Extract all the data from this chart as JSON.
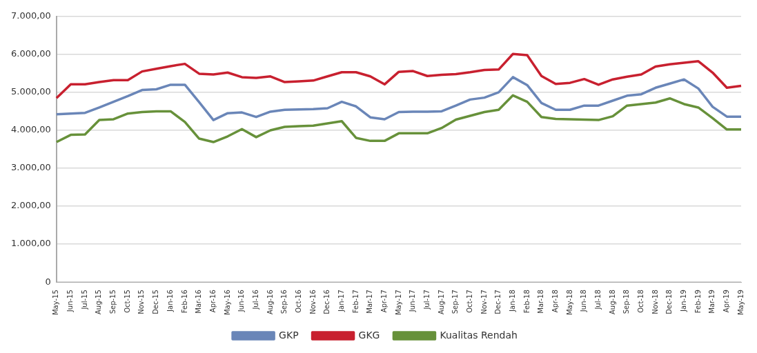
{
  "chart_data": {
    "type": "line",
    "categories": [
      "May-15",
      "Jun-15",
      "Jul-15",
      "Aug-15",
      "Sep-15",
      "Oct-15",
      "Nov-15",
      "Dec-15",
      "Jan-16",
      "Feb-16",
      "Mar-16",
      "Apr-16",
      "May-16",
      "Jun-16",
      "Jul-16",
      "Aug-16",
      "Sep-16",
      "Oct-16",
      "Nov-16",
      "Dec-16",
      "Jan-17",
      "Feb-17",
      "Mar-17",
      "Apr-17",
      "May-17",
      "Jun-17",
      "Jul-17",
      "Aug-17",
      "Sep-17",
      "Oct-17",
      "Nov-17",
      "Dec-17",
      "Jan-18",
      "Feb-18",
      "Mar-18",
      "Apr-18",
      "May-18",
      "Jun-18",
      "Jul-18",
      "Aug-18",
      "Sep-18",
      "Oct-18",
      "Nov-18",
      "Dec-18",
      "Jan-19",
      "Feb-19",
      "Mar-19",
      "Apr-19",
      "May-19"
    ],
    "series": [
      {
        "name": "GKP",
        "color": "#6a86b8",
        "values": [
          4420,
          4440,
          4460,
          4600,
          4750,
          4900,
          5060,
          5080,
          5200,
          5200,
          4740,
          4270,
          4450,
          4470,
          4350,
          4490,
          4540,
          4550,
          4560,
          4580,
          4750,
          4630,
          4340,
          4290,
          4480,
          4490,
          4490,
          4500,
          4650,
          4810,
          4860,
          5000,
          5400,
          5190,
          4720,
          4540,
          4540,
          4650,
          4650,
          4780,
          4910,
          4950,
          5120,
          5230,
          5340,
          5100,
          4620,
          4360,
          4360
        ]
      },
      {
        "name": "GKG",
        "color": "#c8202f",
        "values": [
          4850,
          5210,
          5210,
          5270,
          5320,
          5320,
          5550,
          5620,
          5690,
          5750,
          5490,
          5470,
          5520,
          5400,
          5380,
          5420,
          5270,
          5290,
          5310,
          5420,
          5530,
          5530,
          5420,
          5210,
          5540,
          5560,
          5430,
          5460,
          5480,
          5530,
          5590,
          5600,
          6010,
          5980,
          5430,
          5220,
          5250,
          5350,
          5200,
          5340,
          5410,
          5470,
          5680,
          5740,
          5780,
          5820,
          5520,
          5120,
          5170
        ]
      },
      {
        "name": "Kualitas Rendah",
        "color": "#67913a",
        "values": [
          3690,
          3880,
          3890,
          4270,
          4290,
          4440,
          4480,
          4500,
          4500,
          4220,
          3780,
          3690,
          3840,
          4030,
          3820,
          4000,
          4090,
          4110,
          4120,
          4180,
          4240,
          3800,
          3720,
          3720,
          3920,
          3920,
          3920,
          4060,
          4280,
          4380,
          4480,
          4540,
          4920,
          4750,
          4350,
          4300,
          4290,
          4280,
          4270,
          4370,
          4650,
          4690,
          4730,
          4840,
          4690,
          4600,
          4320,
          4020,
          4020
        ]
      }
    ],
    "ylim": [
      0,
      7000
    ],
    "yticks": [
      0,
      {
        "value": 1000,
        "label": "1.000,00"
      },
      {
        "value": 2000,
        "label": "2.000,00"
      },
      {
        "value": 3000,
        "label": "3.000,00"
      },
      {
        "value": 4000,
        "label": "4.000,00"
      },
      {
        "value": 5000,
        "label": "5.000,00"
      },
      {
        "value": 6000,
        "label": "6.000,00"
      },
      {
        "value": 7000,
        "label": "7.000,00"
      }
    ],
    "grid": "y",
    "legend": "bottom"
  }
}
